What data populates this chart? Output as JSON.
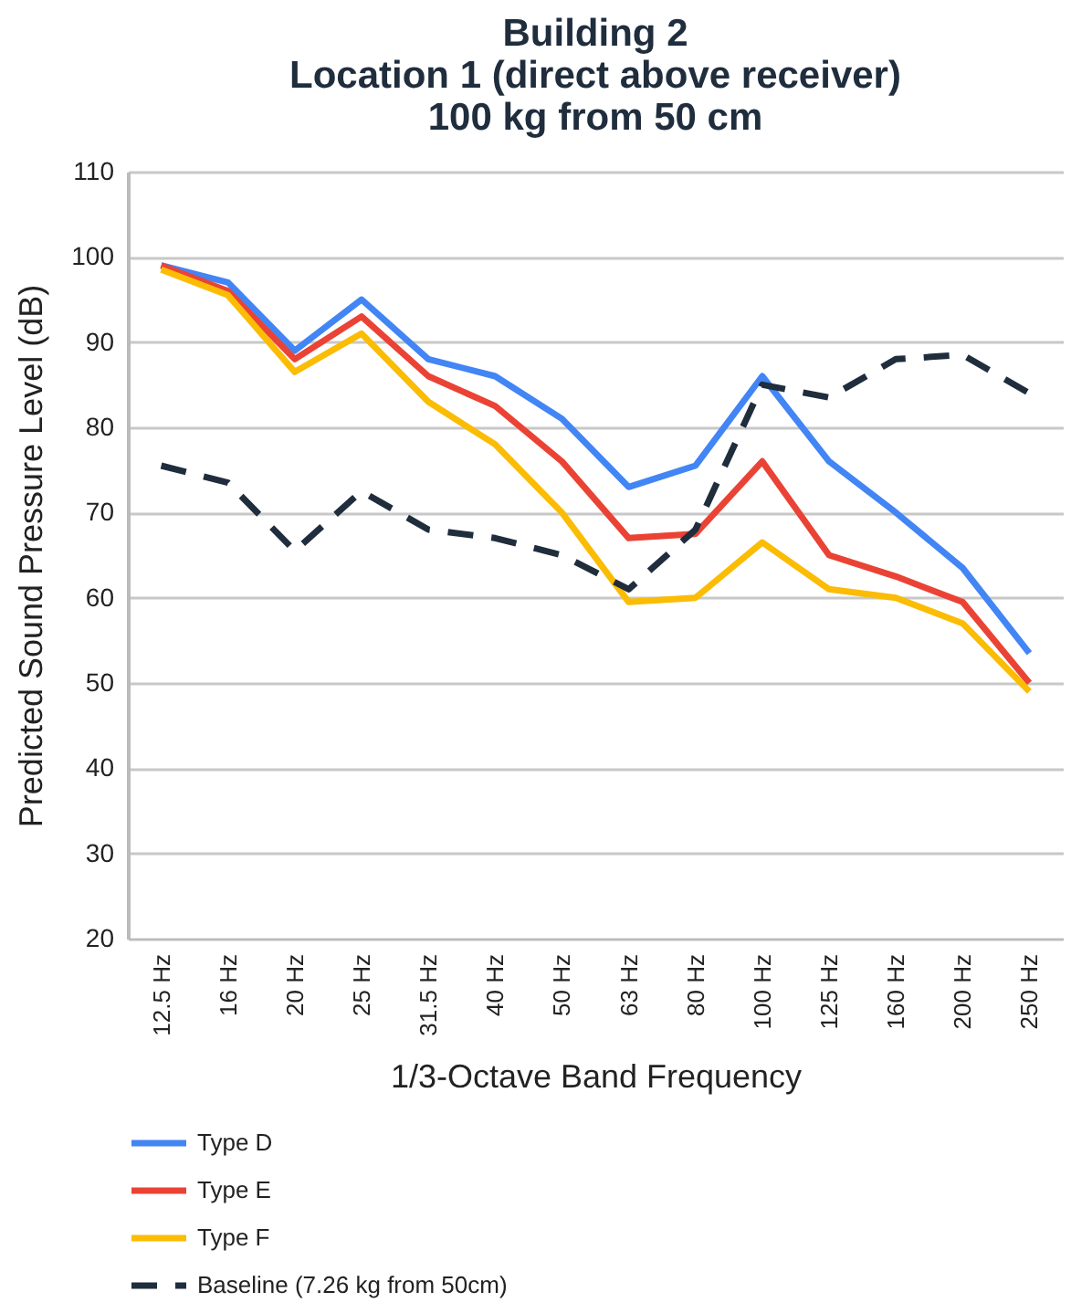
{
  "chart_data": {
    "type": "line",
    "title": "Building 2\nLocation 1 (direct above receiver)\n100 kg from 50 cm",
    "xlabel": "1/3-Octave Band Frequency",
    "ylabel": "Predicted Sound Pressure Level (dB)",
    "categories": [
      "12.5 Hz",
      "16 Hz",
      "20 Hz",
      "25 Hz",
      "31.5 Hz",
      "40 Hz",
      "50 Hz",
      "63 Hz",
      "80 Hz",
      "100 Hz",
      "125 Hz",
      "160 Hz",
      "200 Hz",
      "250 Hz"
    ],
    "series": [
      {
        "name": "Type D",
        "color": "#4285f4",
        "values": [
          99,
          97,
          89,
          95,
          88,
          86,
          81,
          73,
          75.5,
          86,
          76,
          70,
          63.5,
          53.5
        ]
      },
      {
        "name": "Type E",
        "color": "#ea4335",
        "values": [
          99,
          96,
          88,
          93,
          86,
          82.5,
          76,
          67,
          67.5,
          76,
          65,
          62.5,
          59.5,
          50
        ]
      },
      {
        "name": "Type F",
        "color": "#fbbc04",
        "values": [
          98.5,
          95.5,
          86.5,
          91,
          83,
          78,
          70,
          59.5,
          60,
          66.5,
          61,
          60,
          57,
          49
        ]
      },
      {
        "name": "Baseline (7.26 kg from 50cm)",
        "color": "#1f2d3d",
        "line_style": "dashed",
        "values": [
          75.5,
          73.5,
          65.5,
          72.5,
          68,
          67,
          65,
          61,
          68,
          85,
          83.5,
          88,
          88.5,
          84
        ]
      }
    ],
    "ylim": [
      20,
      110
    ],
    "yticks": [
      20,
      30,
      40,
      50,
      60,
      70,
      80,
      90,
      100,
      110
    ],
    "grid": "y",
    "legend": "bottom",
    "line_style": "solid"
  }
}
